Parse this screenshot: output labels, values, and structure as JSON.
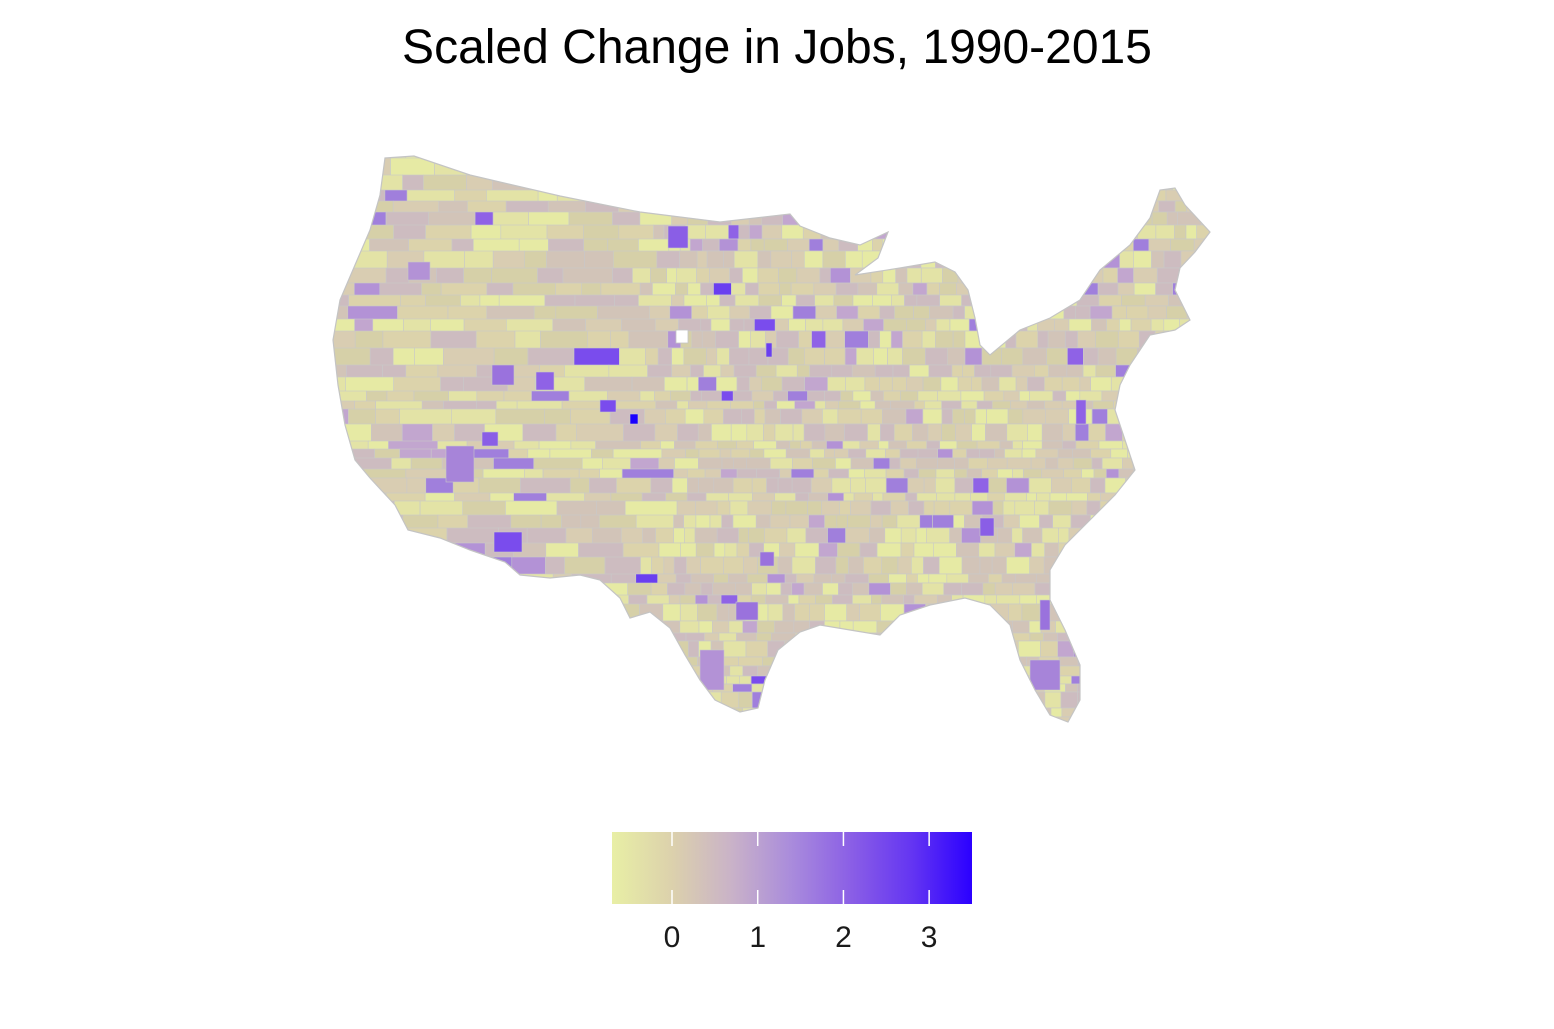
{
  "title": "Scaled Change in Jobs, 1990-2015",
  "legend": {
    "ticks": [
      {
        "label": "0",
        "value": 0
      },
      {
        "label": "1",
        "value": 1
      },
      {
        "label": "2",
        "value": 2
      },
      {
        "label": "3",
        "value": 3
      }
    ],
    "range": [
      -0.7,
      3.5
    ],
    "colors": [
      "#e8efa5",
      "#dcd1ac",
      "#c9b2c8",
      "#a98bdc",
      "#8a5ee6",
      "#6435f2",
      "#2b00ff"
    ]
  },
  "map": {
    "region": "contiguous-united-states",
    "unit": "county",
    "border_color": "#c9c9c9",
    "background_color": "#d8cdb0",
    "missing_color": "#ffffff"
  }
}
